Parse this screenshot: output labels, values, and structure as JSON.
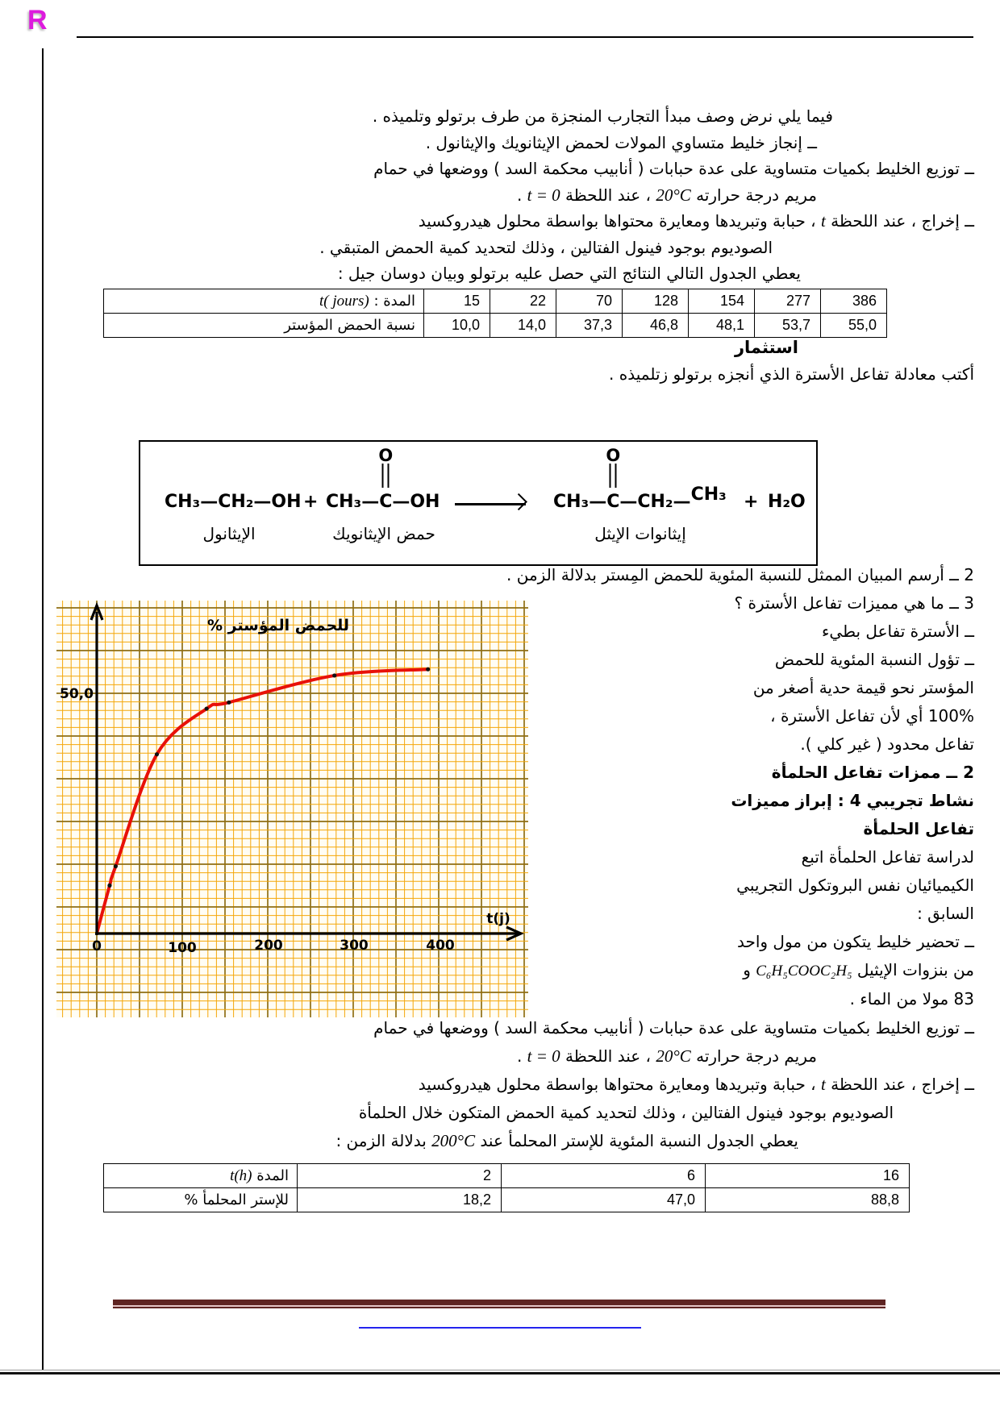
{
  "logo": "R",
  "intro": {
    "l1": "فيما يلي نرض وصف مبدأ التجارب المنجزة من طرف برتولو وتلميذه .",
    "l2": "ــ إنجاز خليط متساوي المولات لحمض الإيثانويك والإيثانول .",
    "l3": "ــ توزيع الخليط بكميات متساوية على عدة حبابات ( أنابيب محكمة السد ) ووضعها في حمام",
    "l4a": "مريم درجة حرارته ",
    "l4m1": "20°C",
    "l4b": " ، عند اللحظة ",
    "l4m2": "t = 0",
    "l4c": " .",
    "l5a": "ــ إخراج ، عند اللحظة ",
    "l5m": "t",
    "l5b": " ، حبابة وتبريدها ومعايرة محتواها بواسطة محلول هيدروكسيد",
    "l6": "الصوديوم بوجود فينول الفتالين ، وذلك لتحديد كمية الحمض المتبقي .",
    "l7": "يعطي الجدول التالي النتائج التي حصل عليه برتولو وبيان دوسان جيل :"
  },
  "table1": {
    "row1_label_ar": "المدة : ",
    "row1_label_math": "t( jours)",
    "row1_values": [
      "15",
      "22",
      "70",
      "128",
      "154",
      "277",
      "386"
    ],
    "row2_label": "نسبة الحمض المؤستر",
    "row2_values": [
      "10,0",
      "14,0",
      "37,3",
      "46,8",
      "48,1",
      "53,7",
      "55,0"
    ]
  },
  "investment": {
    "title": "استثمار",
    "sentence": "أكتب معادلة تفاعل الأسترة الذي أنجزه برتولو زتلميذه ."
  },
  "equation": {
    "mol1": "CH₃—CH₂—OH",
    "plus1": "+",
    "mol2_pre": "CH₃—",
    "mol2_c": "C",
    "mol2_o": "O",
    "mol2_post": "—OH",
    "mol3_pre": "CH₃—",
    "mol3_c": "C",
    "mol3_o": "O",
    "mol3_mid": "—CH₂—",
    "mol3_end": "CH₃",
    "plus2": "+",
    "water": "H₂O",
    "label1": "الإيثانول",
    "label2": "حمض الإيثانويك",
    "label3": "إيثانوات الإيثل"
  },
  "right_col": {
    "l1": "2 ــ أرسم المبيان الممثل للنسبة المئوية للحمض المِستر بدلالة الزمن .",
    "l2": "3 ــ ما هي مميزات تفاعل الأسترة ؟",
    "l3": "ــ الأسترة تفاعل بطيء",
    "l4": "ــ تؤول النسبة المئوية للحمض",
    "l5": "المؤستر نحو قيمة حدية أصغر من",
    "l6": "100% أي لأن تفاعل الأسترة ،",
    "l7": "تفاعل محدود ( غير كلي ).",
    "h1": "2 ــ ممزات تفاعل الحلمأة",
    "h2": "نشاط تجريبي 4 : إبراز مميزات",
    "h3": "تفاعل الحلمأة",
    "l8": "لدراسة تفاعل الحلمأة اتبع",
    "l9": "الكيميائيان نفس البروتكول التجريبي",
    "l10": "السابق :",
    "l11": "ــ تحضير خليط يتكون من مول واحد",
    "l12a": "من بنزوات الإيثيل ",
    "l12m": "C₆H₅COOC₂H₅",
    "l12b": " و",
    "l13": "83 مولا من الماء ."
  },
  "chart_data": {
    "type": "line",
    "x": [
      0,
      15,
      22,
      70,
      128,
      154,
      277,
      386
    ],
    "y": [
      0,
      10.0,
      14.0,
      37.3,
      46.8,
      48.1,
      53.7,
      55.0
    ],
    "x_ticks": [
      "0",
      "100",
      "200",
      "300",
      "400"
    ],
    "y_tick": "50,0",
    "xlabel": "t(j)",
    "ylabel": "% للحمض المؤستر",
    "xlim": [
      0,
      500
    ],
    "ylim": [
      0,
      69
    ],
    "grid": "on",
    "legend": "none",
    "title": ""
  },
  "bottom": {
    "l1": "ــ توزيع الخليط بكميات متساوية على عدة حبابات ( أنابيب محكمة السد ) ووضعها في حمام",
    "l2a": "مريم درجة حرارته ",
    "l2m1": "20°C",
    "l2b": " ، عند اللحظة ",
    "l2m2": "t = 0",
    "l2c": " .",
    "l3a": "ــ إخراج ، عند اللحظة ",
    "l3m": "t",
    "l3b": " ، حبابة وتبريدها ومعايرة محتواها بواسطة محلول هيدروكسيد",
    "l4": "الصوديوم بوجود فينول الفتالين ، وذلك لتحديد كمية الحمض المتكون خلال الحلمأة",
    "l5a": "يعطي الجدول النسبة المئوية للإستر المحلمأ عند ",
    "l5m": "200°C",
    "l5b": " بدلالة الزمن :"
  },
  "table2": {
    "row1_label_ar": "المدة ",
    "row1_label_math": "t(h)",
    "row1_values": [
      "2",
      "6",
      "16"
    ],
    "row2_label": "% للإستر المحلمأ",
    "row2_values": [
      "18,2",
      "47,0",
      "88,8"
    ]
  },
  "colors": {
    "logo": "#DD1BDD",
    "curve": "#E81109",
    "grid_minor": "#F4A70A",
    "grid_major": "#8F6E14",
    "footer_bar": "#5E2422",
    "link_line": "#2424EE"
  }
}
